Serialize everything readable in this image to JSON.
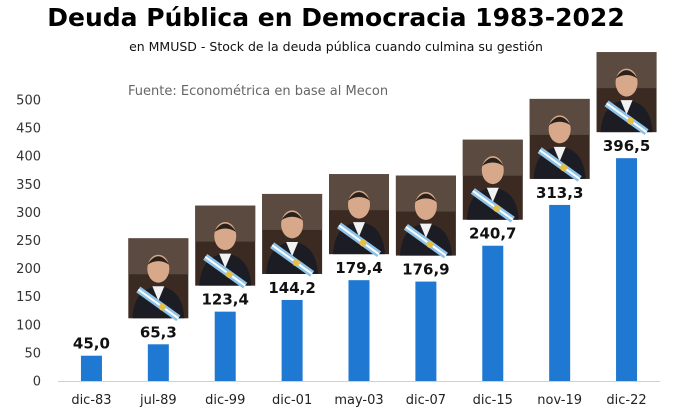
{
  "chart_data": {
    "type": "bar",
    "title": "Deuda Pública en Democracia 1983-2022",
    "subtitle": "en MMUSD - Stock de la deuda pública cuando culmina su gestión",
    "source": "Fuente: Econométrica en base al Mecon",
    "categories": [
      "dic-83",
      "jul-89",
      "dic-99",
      "dic-01",
      "may-03",
      "dic-07",
      "dic-15",
      "nov-19",
      "dic-22"
    ],
    "values": [
      45.0,
      65.3,
      123.4,
      144.2,
      179.4,
      176.9,
      240.7,
      313.3,
      396.5
    ],
    "data_labels": [
      "45,0",
      "65,3",
      "123,4",
      "144,2",
      "179,4",
      "176,9",
      "240,7",
      "313,3",
      "396,5"
    ],
    "ylim": [
      0,
      500
    ],
    "yticks": [
      0,
      50,
      100,
      150,
      200,
      250,
      300,
      350,
      400,
      450,
      500
    ],
    "grid": false,
    "bar_color": "#1f78d1",
    "portraits": [
      false,
      true,
      true,
      true,
      true,
      true,
      true,
      true,
      true
    ]
  }
}
